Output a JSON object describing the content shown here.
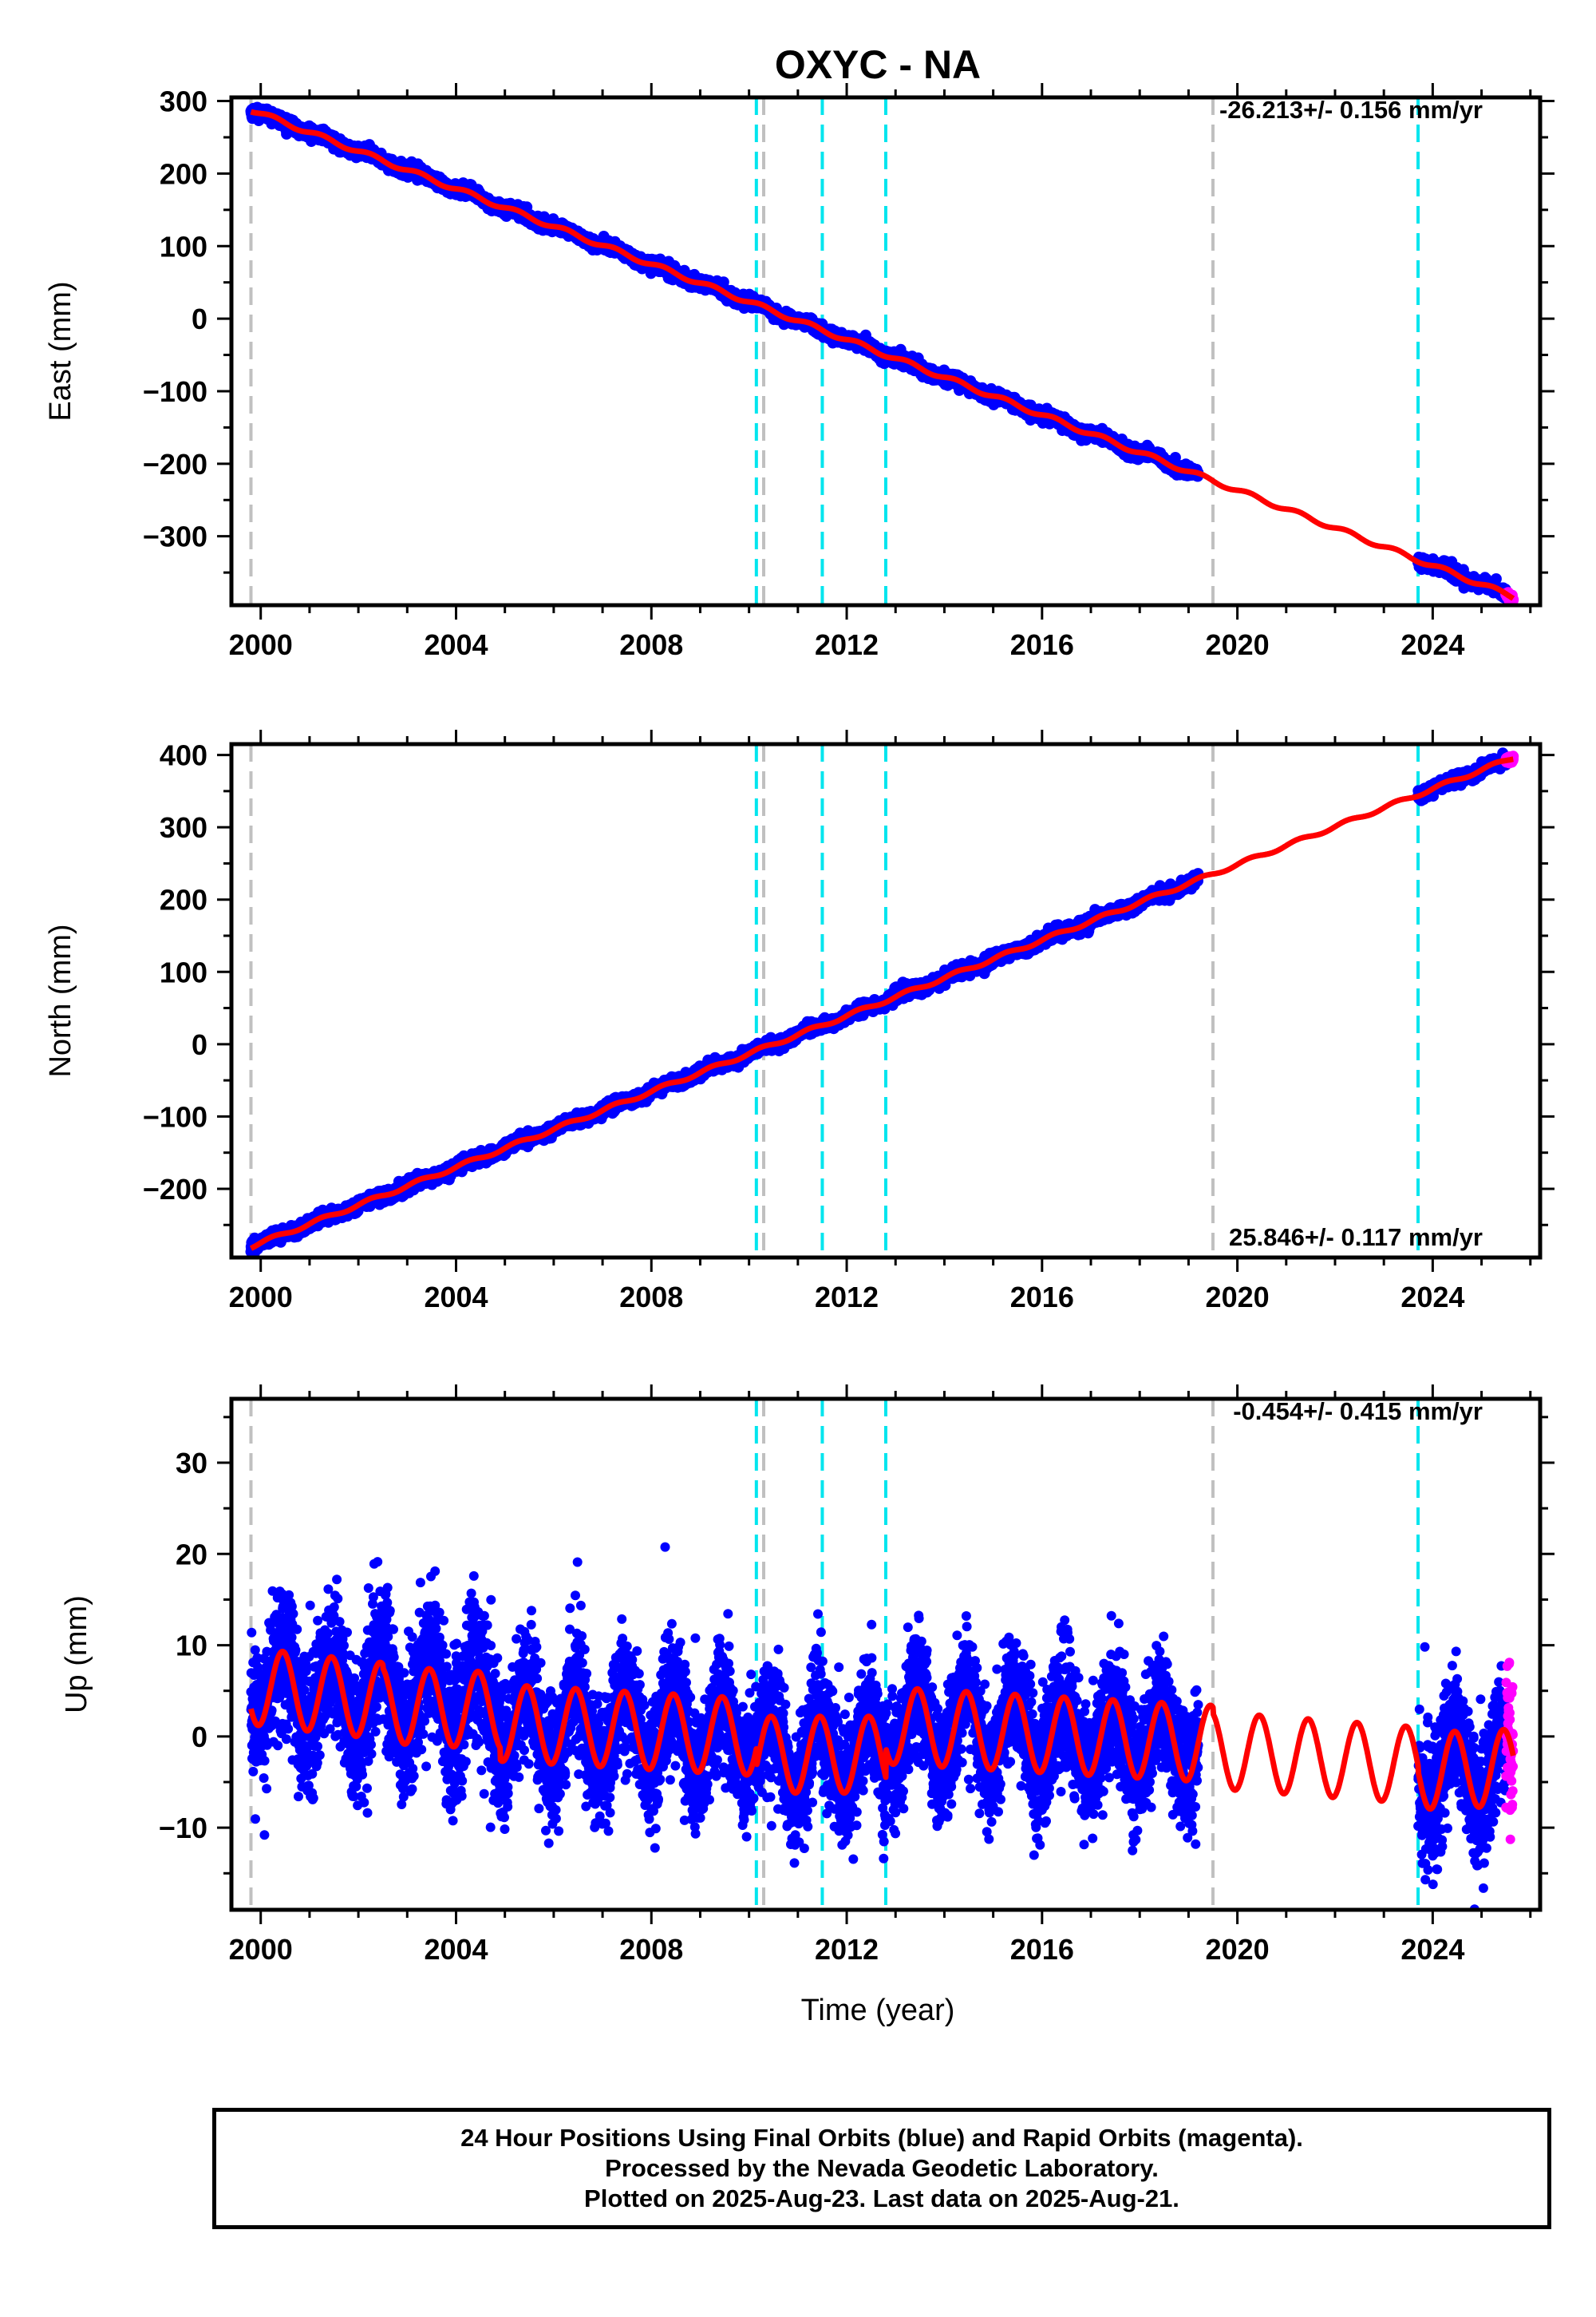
{
  "figure_title": "OXYC - NA",
  "xlabel": "Time (year)",
  "footer": {
    "line1": "24 Hour Positions Using Final Orbits (blue) and Rapid Orbits (magenta).",
    "line2": "Processed by the Nevada Geodetic Laboratory.",
    "line3": "Plotted on 2025-Aug-23. Last data on 2025-Aug-21."
  },
  "colors": {
    "final_orbits": "#0000ff",
    "rapid_orbits": "#ff00ff",
    "model_fit": "#ff0000",
    "equipment_change": "#00e5ee",
    "other_offset": "#c0c0c0"
  },
  "chart_data": [
    {
      "type": "scatter",
      "component": "east",
      "ylabel": "East (mm)",
      "rate_label": "-26.213+/- 0.156 mm/yr",
      "xlim": [
        1999.4,
        2026.2
      ],
      "ylim": [
        -395,
        305
      ],
      "x_ticks": [
        2000,
        2004,
        2008,
        2012,
        2016,
        2020,
        2024
      ],
      "y_ticks": [
        300,
        200,
        100,
        0,
        -100,
        -200,
        -300
      ],
      "data_gap": [
        2019.2,
        2023.7
      ],
      "offsets_gray": [
        1999.8,
        2010.3,
        2019.5
      ],
      "offsets_cyan": [
        2010.15,
        2011.5,
        2012.8,
        2023.7
      ],
      "trend": {
        "start": [
          1999.8,
          288
        ],
        "end": [
          2025.6,
          -382
        ]
      },
      "seasonal_amplitude": 3,
      "series": [
        {
          "name": "Final Orbits",
          "x_range": [
            1999.8,
            2025.5
          ],
          "scatter": 4
        },
        {
          "name": "Rapid Orbits",
          "x_range": [
            2025.5,
            2025.65
          ],
          "scatter": 2
        }
      ]
    },
    {
      "type": "scatter",
      "component": "north",
      "ylabel": "North (mm)",
      "rate_label": "25.846+/- 0.117 mm/yr",
      "xlim": [
        1999.4,
        2026.2
      ],
      "ylim": [
        -295,
        415
      ],
      "x_ticks": [
        2000,
        2004,
        2008,
        2012,
        2016,
        2020,
        2024
      ],
      "y_ticks": [
        400,
        300,
        200,
        100,
        0,
        -100,
        -200
      ],
      "data_gap": [
        2019.2,
        2023.7
      ],
      "offsets_gray": [
        1999.8,
        2010.3,
        2019.5
      ],
      "offsets_cyan": [
        2010.15,
        2011.5,
        2012.8,
        2023.7
      ],
      "trend": {
        "start": [
          1999.8,
          -280
        ],
        "end": [
          2025.6,
          395
        ]
      },
      "seasonal_amplitude": 2.5,
      "series": [
        {
          "name": "Final Orbits",
          "x_range": [
            1999.8,
            2025.5
          ],
          "scatter": 4
        },
        {
          "name": "Rapid Orbits",
          "x_range": [
            2025.5,
            2025.65
          ],
          "scatter": 2
        }
      ]
    },
    {
      "type": "scatter",
      "component": "up",
      "ylabel": "Up (mm)",
      "rate_label": "-0.454+/- 0.415 mm/yr",
      "xlim": [
        1999.4,
        2026.2
      ],
      "ylim": [
        -19,
        37
      ],
      "x_ticks": [
        2000,
        2004,
        2008,
        2012,
        2016,
        2020,
        2024
      ],
      "y_ticks": [
        30,
        20,
        10,
        0,
        -10
      ],
      "data_gap": [
        2019.2,
        2023.7
      ],
      "offsets_gray": [
        1999.8,
        2010.3,
        2019.5
      ],
      "offsets_cyan": [
        2010.15,
        2011.5,
        2012.8,
        2023.7
      ],
      "model_segments": [
        {
          "x_range": [
            1999.8,
            2002.5
          ],
          "baseline": 5.5,
          "slope": -0.6
        },
        {
          "x_range": [
            2002.5,
            2004.9
          ],
          "baseline": 3.5,
          "slope": -0.3
        },
        {
          "x_range": [
            2004.9,
            2010.15
          ],
          "baseline": 1.5,
          "slope": -0.3
        },
        {
          "x_range": [
            2010.15,
            2012.8
          ],
          "baseline": -2.0,
          "slope": 0.0
        },
        {
          "x_range": [
            2012.8,
            2019.5
          ],
          "baseline": 1.2,
          "slope": -0.3
        },
        {
          "x_range": [
            2019.5,
            2023.7
          ],
          "baseline": -1.5,
          "slope": -0.4
        },
        {
          "x_range": [
            2023.7,
            2025.65
          ],
          "baseline": -3.8,
          "slope": 0.2
        }
      ],
      "seasonal_amplitude": 4.2,
      "series": [
        {
          "name": "Final Orbits",
          "x_range": [
            1999.8,
            2025.5
          ],
          "scatter": 3.3
        },
        {
          "name": "Rapid Orbits",
          "x_range": [
            2025.5,
            2025.65
          ],
          "scatter": 4.5
        }
      ]
    }
  ]
}
